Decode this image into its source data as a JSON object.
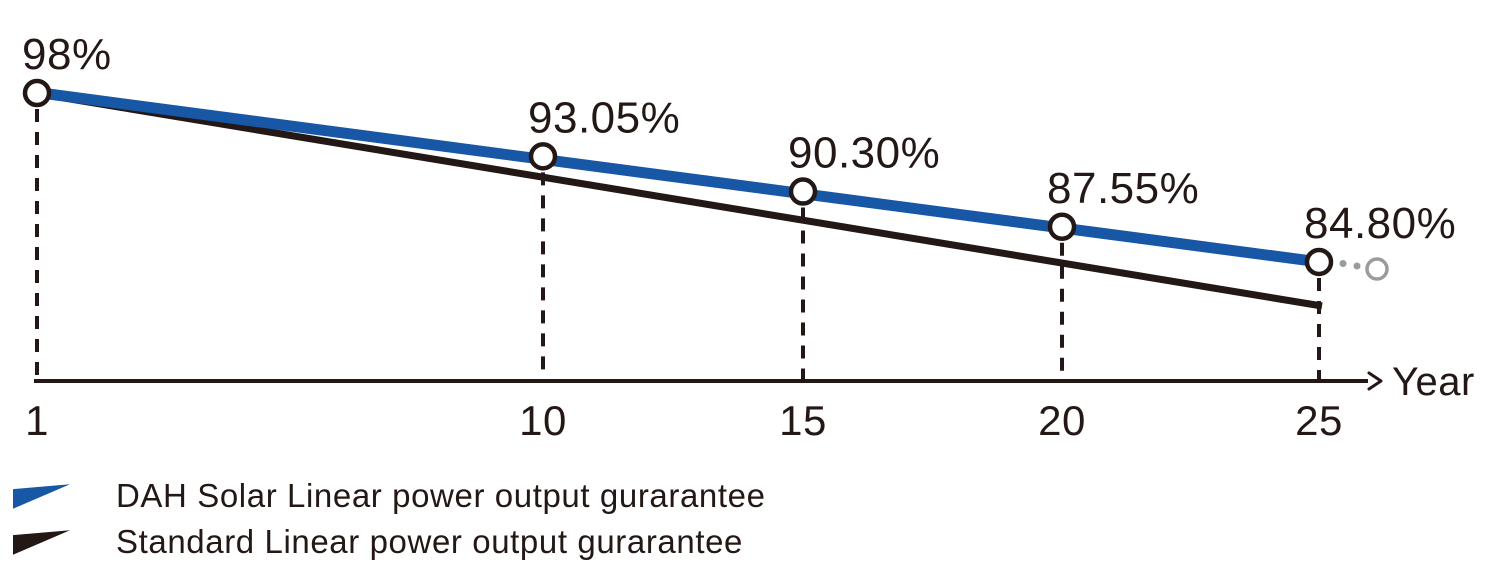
{
  "colors": {
    "ink": "#231815",
    "dah_blue": "#1757a5",
    "continuation_gray": "#9b9b9b",
    "background": "#ffffff"
  },
  "chart_data": {
    "type": "line",
    "title": "",
    "xlabel": "Year",
    "ylabel": "",
    "x_ticks": [
      "1",
      "10",
      "15",
      "20",
      "25"
    ],
    "x_tick_years": [
      1,
      10,
      15,
      20,
      25
    ],
    "ylim_visual": [
      80,
      100
    ],
    "grid": "off",
    "droplines": "dashed vertical lines from each labeled point to the x-axis",
    "legend_position": "bottom-left",
    "series": [
      {
        "name": "DAH Solar Linear power output gurarantee",
        "color": "#1757a5",
        "marker": "open-circle",
        "points": [
          {
            "year": 1,
            "value": 98.0,
            "label": "98%"
          },
          {
            "year": 10,
            "value": 93.05,
            "label": "93.05%"
          },
          {
            "year": 15,
            "value": 90.3,
            "label": "90.30%"
          },
          {
            "year": 20,
            "value": 87.55,
            "label": "87.55%"
          },
          {
            "year": 25,
            "value": 84.8,
            "label": "84.80%"
          }
        ],
        "continues_beyond_last_point": true,
        "continuation_style": "two gray dots then open gray circle"
      },
      {
        "name": "Standard Linear power output gurarantee",
        "color": "#231815",
        "marker": "none",
        "labeled_points": false,
        "year_span": [
          1,
          25
        ],
        "note_visual": "declines faster than DAH Solar line, unlabeled"
      }
    ],
    "legend": [
      {
        "label": "DAH Solar Linear power output gurarantee",
        "color": "#1757a5"
      },
      {
        "label": "Standard Linear power output gurarantee",
        "color": "#231815"
      }
    ]
  }
}
